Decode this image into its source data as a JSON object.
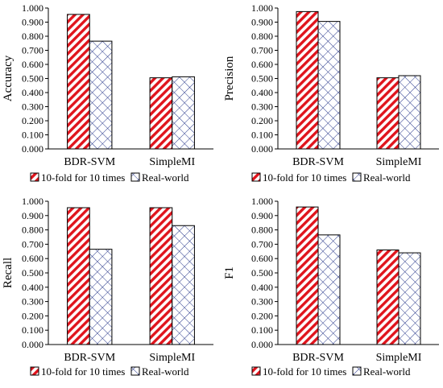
{
  "colors": {
    "series1_stroke": "#e0141c",
    "series2_stroke": "#2a3a8c",
    "axis": "#000000",
    "bar_outline": "#000000"
  },
  "chart_data": [
    {
      "type": "bar",
      "ylabel": "Accuracy",
      "categories": [
        "BDR-SVM",
        "SimpleMI"
      ],
      "ylim": [
        0,
        1
      ],
      "yticks": [
        "0.000",
        "0.100",
        "0.200",
        "0.300",
        "0.400",
        "0.500",
        "0.600",
        "0.700",
        "0.800",
        "0.900",
        "1.000"
      ],
      "legend_position": "bottom",
      "series": [
        {
          "name": "10-fold for 10 times",
          "pattern": "diagonal-stripes",
          "values": [
            0.955,
            0.505
          ]
        },
        {
          "name": "Real-world",
          "pattern": "crosshatch",
          "values": [
            0.765,
            0.512
          ]
        }
      ]
    },
    {
      "type": "bar",
      "ylabel": "Precision",
      "categories": [
        "BDR-SVM",
        "SimpleMI"
      ],
      "ylim": [
        0,
        1
      ],
      "yticks": [
        "0.000",
        "0.100",
        "0.200",
        "0.300",
        "0.400",
        "0.500",
        "0.600",
        "0.700",
        "0.800",
        "0.900",
        "1.000"
      ],
      "legend_position": "bottom",
      "series": [
        {
          "name": "10-fold for 10 times",
          "pattern": "diagonal-stripes",
          "values": [
            0.975,
            0.505
          ]
        },
        {
          "name": "Real-world",
          "pattern": "crosshatch",
          "values": [
            0.905,
            0.52
          ]
        }
      ]
    },
    {
      "type": "bar",
      "ylabel": "Recall",
      "categories": [
        "BDR-SVM",
        "SimpleMI"
      ],
      "ylim": [
        0,
        1
      ],
      "yticks": [
        "0.000",
        "0.100",
        "0.200",
        "0.300",
        "0.400",
        "0.500",
        "0.600",
        "0.700",
        "0.800",
        "0.900",
        "1.000"
      ],
      "legend_position": "bottom",
      "series": [
        {
          "name": "10-fold for 10 times",
          "pattern": "diagonal-stripes",
          "values": [
            0.955,
            0.955
          ]
        },
        {
          "name": "Real-world",
          "pattern": "crosshatch",
          "values": [
            0.665,
            0.83
          ]
        }
      ]
    },
    {
      "type": "bar",
      "ylabel": "F1",
      "categories": [
        "BDR-SVM",
        "SimpleMI"
      ],
      "ylim": [
        0,
        1
      ],
      "yticks": [
        "0.000",
        "0.100",
        "0.200",
        "0.300",
        "0.400",
        "0.500",
        "0.600",
        "0.700",
        "0.800",
        "0.900",
        "1.000"
      ],
      "legend_position": "bottom",
      "series": [
        {
          "name": "10-fold for 10 times",
          "pattern": "diagonal-stripes",
          "values": [
            0.96,
            0.66
          ]
        },
        {
          "name": "Real-world",
          "pattern": "crosshatch",
          "values": [
            0.765,
            0.64
          ]
        }
      ]
    }
  ]
}
